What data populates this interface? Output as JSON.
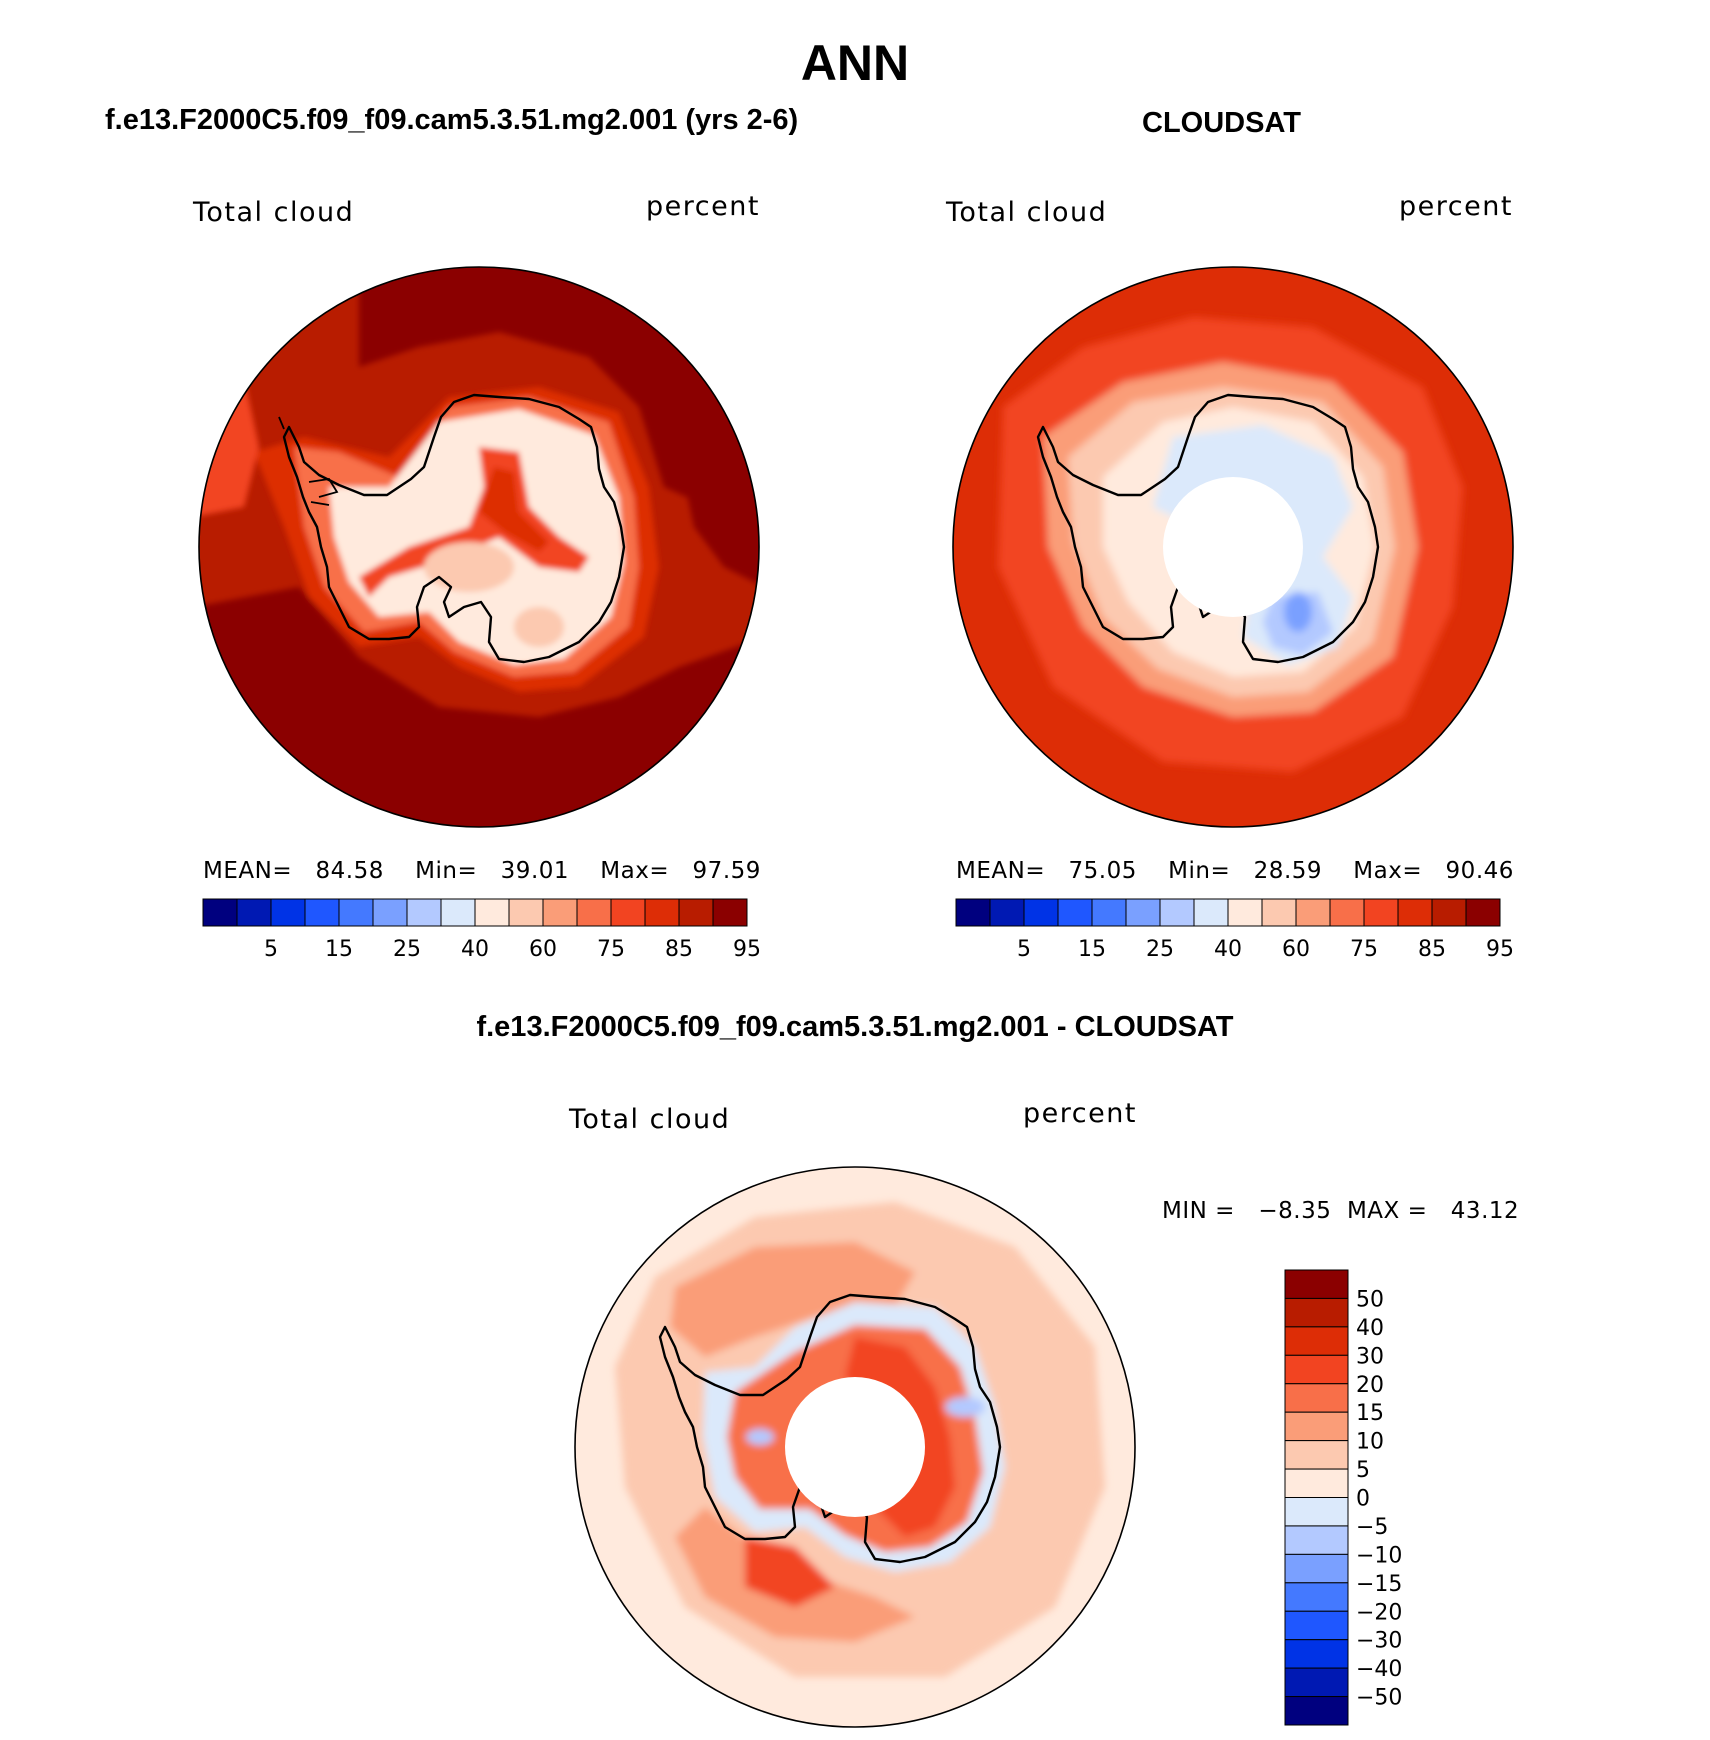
{
  "figure": {
    "title": "ANN",
    "panel_left_title": "f.e13.F2000C5.f09_f09.cam5.3.51.mg2.001 (yrs 2-6)",
    "panel_right_title": "CLOUDSAT",
    "panel_bottom_title": "f.e13.F2000C5.f09_f09.cam5.3.51.mg2.001 - CLOUDSAT"
  },
  "chart_data": [
    {
      "type": "heatmap",
      "projection": "south-polar-stereographic",
      "title": "f.e13.F2000C5.f09_f09.cam5.3.51.mg2.001 (yrs 2-6)",
      "variable": "Total cloud",
      "units": "percent",
      "stats": {
        "mean_label": "MEAN=",
        "mean": "84.58",
        "min_label": "Min=",
        "min": "39.01",
        "max_label": "Max=",
        "max": "97.59"
      },
      "colorbar": {
        "orientation": "horizontal",
        "levels": [
          "5",
          "15",
          "25",
          "40",
          "60",
          "75",
          "85",
          "95"
        ],
        "colors": [
          "#00007f",
          "#0019b3",
          "#0033e6",
          "#1f57ff",
          "#4479ff",
          "#7aa0ff",
          "#b3c9ff",
          "#dbe9fb",
          "#ffeadd",
          "#fcc9b0",
          "#fa9d78",
          "#f86f49",
          "#f24421",
          "#dd2d06",
          "#b81c00",
          "#8b0000"
        ]
      },
      "field": {
        "ocean_outer": "#b81c00",
        "ocean_band": "#8b0000",
        "sea_ice_edge": "#dd2d06",
        "coast_edge": "#f86f49",
        "interior": "#ffeadd",
        "interior_ridge": "#f24421",
        "polar_hole": false
      }
    },
    {
      "type": "heatmap",
      "projection": "south-polar-stereographic",
      "title": "CLOUDSAT",
      "variable": "Total cloud",
      "units": "percent",
      "stats": {
        "mean_label": "MEAN=",
        "mean": "75.05",
        "min_label": "Min=",
        "min": "28.59",
        "max_label": "Max=",
        "max": "90.46"
      },
      "colorbar": {
        "orientation": "horizontal",
        "levels": [
          "5",
          "15",
          "25",
          "40",
          "60",
          "75",
          "85",
          "95"
        ],
        "colors": [
          "#00007f",
          "#0019b3",
          "#0033e6",
          "#1f57ff",
          "#4479ff",
          "#7aa0ff",
          "#b3c9ff",
          "#dbe9fb",
          "#ffeadd",
          "#fcc9b0",
          "#fa9d78",
          "#f86f49",
          "#f24421",
          "#dd2d06",
          "#b81c00",
          "#8b0000"
        ]
      },
      "field": {
        "ocean_outer": "#dd2d06",
        "ocean_band": "#f24421",
        "sea_ice_edge": "#fa9d78",
        "coast_edge": "#fcc9b0",
        "interior": "#ffeadd",
        "interior_low": "#b3c9ff",
        "interior_min": "#7aa0ff",
        "polar_hole": true
      }
    },
    {
      "type": "heatmap",
      "projection": "south-polar-stereographic",
      "title": "f.e13.F2000C5.f09_f09.cam5.3.51.mg2.001 - CLOUDSAT",
      "variable": "Total cloud",
      "units": "percent",
      "stats": {
        "text": "MIN =   −8.35  MAX =   43.12",
        "min": "-8.35",
        "max": "43.12"
      },
      "colorbar": {
        "orientation": "vertical",
        "levels": [
          "50",
          "40",
          "30",
          "20",
          "15",
          "10",
          "5",
          "0",
          "−5",
          "−10",
          "−15",
          "−20",
          "−30",
          "−40",
          "−50"
        ],
        "colors": [
          "#8b0000",
          "#b81c00",
          "#dd2d06",
          "#f24421",
          "#f86f49",
          "#fa9d78",
          "#fcc9b0",
          "#ffeadd",
          "#dbe9fb",
          "#b3c9ff",
          "#7aa0ff",
          "#4479ff",
          "#1f57ff",
          "#0033e6",
          "#0019b3",
          "#00007f"
        ]
      },
      "field": {
        "ocean_outer": "#ffeadd",
        "ocean_band": "#fcc9b0",
        "ocean_high": "#fa9d78",
        "coast_edge": "#dbe9fb",
        "interior": "#f86f49",
        "interior_peak": "#f24421",
        "polar_hole": true
      }
    }
  ]
}
